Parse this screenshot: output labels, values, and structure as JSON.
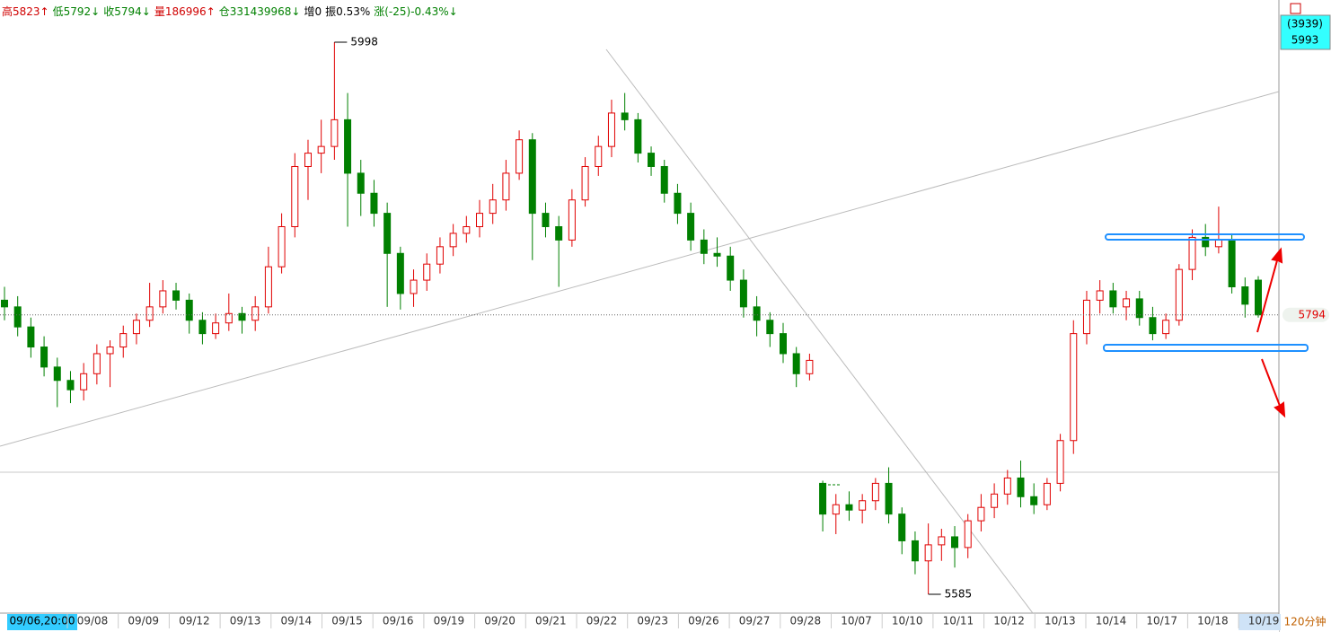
{
  "chart_data": {
    "type": "candlestick",
    "header": [
      {
        "text": "高5823↑",
        "color": "#d00000"
      },
      {
        "text": "低5792↓",
        "color": "#008000"
      },
      {
        "text": "收5794↓",
        "color": "#008000"
      },
      {
        "text": "量186996↑",
        "color": "#d00000"
      },
      {
        "text": "仓331439968↓",
        "color": "#008000"
      },
      {
        "text": "增0",
        "color": "#000000"
      },
      {
        "text": "振0.53%",
        "color": "#000000"
      },
      {
        "text": "涨(-25)-0.43%↓",
        "color": "#008000"
      }
    ],
    "corner_box": [
      "(3939)",
      "5993"
    ],
    "period": "120分钟",
    "x_labels": [
      "09/06,20:00",
      "09/08",
      "09/09",
      "09/12",
      "09/13",
      "09/14",
      "09/15",
      "09/16",
      "09/19",
      "09/20",
      "09/21",
      "09/22",
      "09/23",
      "09/26",
      "09/27",
      "09/28",
      "10/07",
      "10/10",
      "10/11",
      "10/12",
      "10/13",
      "10/14",
      "10/17",
      "10/18",
      "10/19"
    ],
    "max_label": 5998,
    "min_label": 5585,
    "up_color": "#e00000",
    "down_color": "#008000",
    "open": [
      5805,
      5800,
      5785,
      5770,
      5755,
      5745,
      5738,
      5750,
      5765,
      5770,
      5780,
      5790,
      5800,
      5812,
      5805,
      5790,
      5780,
      5788,
      5795,
      5790,
      5800,
      5830,
      5860,
      5905,
      5915,
      5920,
      5940,
      5900,
      5885,
      5870,
      5840,
      5810,
      5820,
      5832,
      5845,
      5855,
      5860,
      5870,
      5880,
      5900,
      5925,
      5870,
      5860,
      5850,
      5880,
      5905,
      5920,
      5945,
      5940,
      5915,
      5905,
      5885,
      5870,
      5850,
      5840,
      5838,
      5820,
      5800,
      5790,
      5780,
      5765,
      5750,
      5668,
      5645,
      5652,
      5648,
      5655,
      5668,
      5645,
      5625,
      5610,
      5622,
      5628,
      5620,
      5640,
      5650,
      5660,
      5672,
      5658,
      5652,
      5668,
      5700,
      5780,
      5805,
      5812,
      5800,
      5806,
      5792,
      5780,
      5790,
      5828,
      5852,
      5845,
      5850,
      5815,
      5820
    ],
    "high": [
      5815,
      5808,
      5792,
      5778,
      5762,
      5752,
      5758,
      5772,
      5775,
      5786,
      5795,
      5818,
      5820,
      5818,
      5810,
      5796,
      5795,
      5810,
      5800,
      5808,
      5845,
      5870,
      5915,
      5925,
      5940,
      5998,
      5960,
      5910,
      5895,
      5878,
      5845,
      5828,
      5840,
      5852,
      5862,
      5868,
      5880,
      5892,
      5910,
      5932,
      5930,
      5878,
      5868,
      5888,
      5912,
      5928,
      5955,
      5960,
      5945,
      5920,
      5910,
      5892,
      5878,
      5858,
      5852,
      5845,
      5828,
      5808,
      5796,
      5788,
      5770,
      5765,
      5670,
      5660,
      5662,
      5660,
      5672,
      5680,
      5650,
      5632,
      5638,
      5634,
      5636,
      5645,
      5660,
      5668,
      5678,
      5685,
      5668,
      5672,
      5705,
      5790,
      5812,
      5820,
      5818,
      5812,
      5812,
      5800,
      5795,
      5832,
      5858,
      5862,
      5875,
      5855,
      5822,
      5823
    ],
    "low": [
      5790,
      5778,
      5762,
      5748,
      5725,
      5728,
      5730,
      5742,
      5740,
      5762,
      5772,
      5785,
      5795,
      5798,
      5780,
      5772,
      5776,
      5782,
      5780,
      5782,
      5795,
      5825,
      5852,
      5880,
      5900,
      5910,
      5860,
      5868,
      5860,
      5800,
      5798,
      5800,
      5812,
      5825,
      5838,
      5848,
      5852,
      5862,
      5872,
      5895,
      5835,
      5852,
      5815,
      5845,
      5875,
      5898,
      5912,
      5932,
      5908,
      5898,
      5878,
      5862,
      5842,
      5832,
      5830,
      5812,
      5792,
      5778,
      5770,
      5758,
      5740,
      5745,
      5632,
      5630,
      5640,
      5638,
      5648,
      5638,
      5615,
      5600,
      5585,
      5610,
      5605,
      5612,
      5632,
      5642,
      5652,
      5650,
      5645,
      5648,
      5662,
      5690,
      5772,
      5795,
      5795,
      5790,
      5786,
      5775,
      5776,
      5786,
      5820,
      5838,
      5840,
      5810,
      5792,
      5792
    ],
    "close": [
      5800,
      5785,
      5770,
      5755,
      5745,
      5738,
      5750,
      5765,
      5770,
      5780,
      5790,
      5800,
      5812,
      5805,
      5790,
      5780,
      5788,
      5795,
      5790,
      5800,
      5830,
      5860,
      5905,
      5915,
      5920,
      5940,
      5900,
      5885,
      5870,
      5840,
      5810,
      5820,
      5832,
      5845,
      5855,
      5860,
      5870,
      5880,
      5900,
      5925,
      5870,
      5860,
      5850,
      5880,
      5905,
      5920,
      5945,
      5940,
      5915,
      5905,
      5885,
      5870,
      5850,
      5840,
      5838,
      5820,
      5800,
      5790,
      5780,
      5765,
      5750,
      5760,
      5645,
      5652,
      5648,
      5655,
      5668,
      5645,
      5625,
      5610,
      5622,
      5628,
      5620,
      5640,
      5650,
      5660,
      5672,
      5658,
      5652,
      5668,
      5700,
      5780,
      5805,
      5812,
      5800,
      5806,
      5792,
      5780,
      5790,
      5828,
      5852,
      5845,
      5850,
      5815,
      5802,
      5794
    ]
  }
}
